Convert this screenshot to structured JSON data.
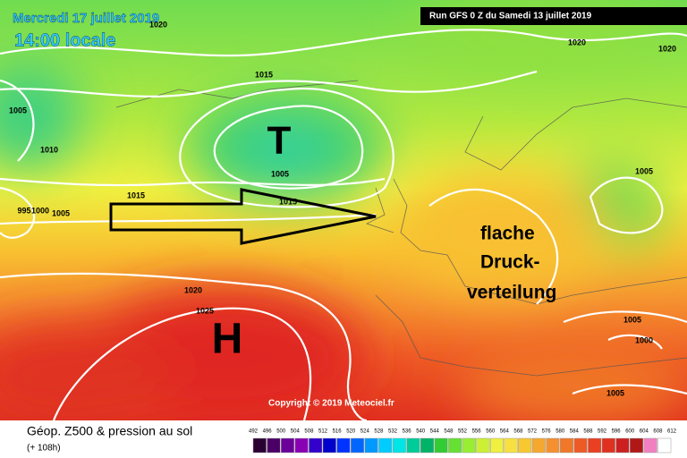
{
  "header": {
    "date": "Mercredi 17 juillet 2019",
    "time": "14:00 locale",
    "run": "Run GFS 0 Z du Samedi 13 juillet 2019"
  },
  "map": {
    "pressure_labels": [
      1020,
      1015,
      1005,
      1010,
      1005,
      1015,
      1015,
      995,
      1000,
      1005,
      1020,
      1020,
      1005,
      1020,
      1025,
      1005,
      1000,
      1005
    ],
    "low": "T",
    "high": "H",
    "annotation": [
      "flache",
      "Druck-",
      "verteilung"
    ]
  },
  "footer": {
    "copyright": "Copyright © 2019 Meteociel.fr",
    "title": "Géop. Z500 & pression au sol",
    "lead": "(+ 108h)",
    "scale_labels": [
      492,
      496,
      500,
      504,
      508,
      512,
      516,
      520,
      524,
      528,
      532,
      536,
      540,
      544,
      548,
      552,
      556,
      560,
      564,
      568,
      572,
      576,
      580,
      584,
      588,
      592,
      596,
      600,
      604,
      608,
      612
    ],
    "scale_colors": [
      "#2a0033",
      "#4b0066",
      "#6a0099",
      "#8a00b3",
      "#3300cc",
      "#0000cc",
      "#0033ff",
      "#0066ff",
      "#0099ff",
      "#00ccff",
      "#00e5e5",
      "#00cc99",
      "#00b366",
      "#33cc33",
      "#66e033",
      "#99ee33",
      "#ccf033",
      "#f0f040",
      "#f8e040",
      "#f8c830",
      "#f5a830",
      "#f59030",
      "#f07828",
      "#ee5a25",
      "#e84020",
      "#e03020",
      "#cc2020",
      "#b01818",
      "#f080c0",
      "#ffffff"
    ]
  }
}
